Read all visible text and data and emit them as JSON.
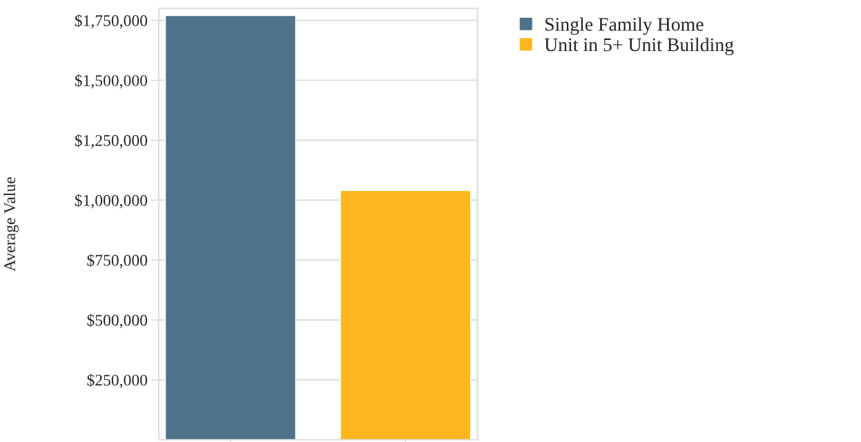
{
  "chart_data": {
    "type": "bar",
    "ylabel": "Average Value",
    "categories": [
      null,
      null
    ],
    "ylim": [
      0,
      1800000
    ],
    "yticks": [
      {
        "value": 250000,
        "label": "$250,000"
      },
      {
        "value": 500000,
        "label": "$500,000"
      },
      {
        "value": 750000,
        "label": "$750,000"
      },
      {
        "value": 1000000,
        "label": "$1,000,000"
      },
      {
        "value": 1250000,
        "label": "$1,250,000"
      },
      {
        "value": 1500000,
        "label": "$1,500,000"
      },
      {
        "value": 1750000,
        "label": "$1,750,000"
      }
    ],
    "grid": "y",
    "legend": "right",
    "series": [
      {
        "name": "Single Family Home",
        "color": "#4e7289",
        "values": [
          1770000,
          null
        ]
      },
      {
        "name": "Unit in 5+ Unit Building",
        "color": "#fdb71f",
        "values": [
          null,
          1040000
        ]
      }
    ]
  }
}
